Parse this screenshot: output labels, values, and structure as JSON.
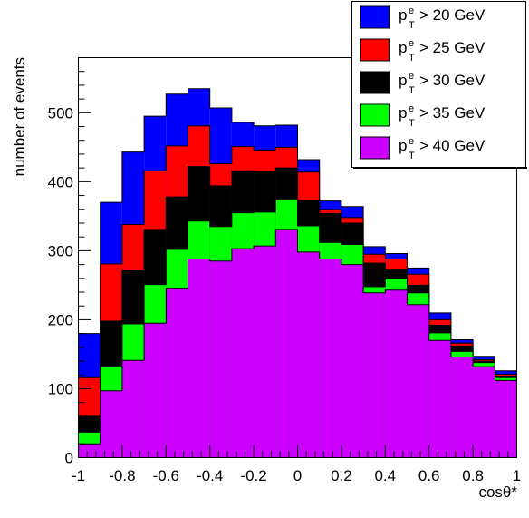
{
  "chart_data": {
    "type": "bar",
    "subtype": "overlaid-histogram",
    "title": "",
    "xlabel": "cosθ*",
    "ylabel": "number of events",
    "xlim": [
      -1,
      1
    ],
    "ylim": [
      0,
      580
    ],
    "bin_edges": [
      -1.0,
      -0.9,
      -0.8,
      -0.7,
      -0.6,
      -0.5,
      -0.4,
      -0.3,
      -0.2,
      -0.1,
      0.0,
      0.1,
      0.2,
      0.3,
      0.4,
      0.5,
      0.6,
      0.7,
      0.8,
      0.9,
      1.0
    ],
    "x_ticks": [
      "-1",
      "-0.8",
      "-0.6",
      "-0.4",
      "-0.2",
      "0",
      "0.2",
      "0.4",
      "0.6",
      "0.8",
      "1"
    ],
    "y_ticks": [
      "0",
      "100",
      "200",
      "300",
      "400",
      "500"
    ],
    "grid": false,
    "legend_position": "top-right",
    "series": [
      {
        "name": "> 20 GeV",
        "color": "#0000ff",
        "values": [
          180,
          370,
          443,
          495,
          527,
          535,
          507,
          486,
          481,
          482,
          432,
          372,
          364,
          306,
          296,
          275,
          210,
          171,
          147,
          126
        ]
      },
      {
        "name": "> 25 GeV",
        "color": "#ff0000",
        "values": [
          116,
          281,
          338,
          416,
          452,
          481,
          426,
          451,
          446,
          450,
          414,
          360,
          348,
          295,
          288,
          266,
          200,
          166,
          142,
          121
        ]
      },
      {
        "name": "> 30 GeV",
        "color": "#000000",
        "values": [
          60,
          198,
          271,
          331,
          378,
          422,
          394,
          416,
          415,
          420,
          373,
          354,
          340,
          282,
          272,
          250,
          192,
          162,
          140,
          118
        ]
      },
      {
        "name": "> 35 GeV",
        "color": "#00ff00",
        "values": [
          37,
          133,
          194,
          251,
          302,
          343,
          335,
          355,
          356,
          375,
          336,
          312,
          309,
          248,
          260,
          239,
          181,
          154,
          138,
          116
        ]
      },
      {
        "name": "> 40 GeV",
        "color": "#cc00ff",
        "values": [
          20,
          97,
          141,
          195,
          245,
          288,
          285,
          303,
          307,
          331,
          298,
          288,
          280,
          239,
          243,
          222,
          170,
          146,
          132,
          112
        ]
      }
    ],
    "legend_symbol": {
      "base": "p",
      "sup": "e",
      "sub": "T"
    }
  }
}
